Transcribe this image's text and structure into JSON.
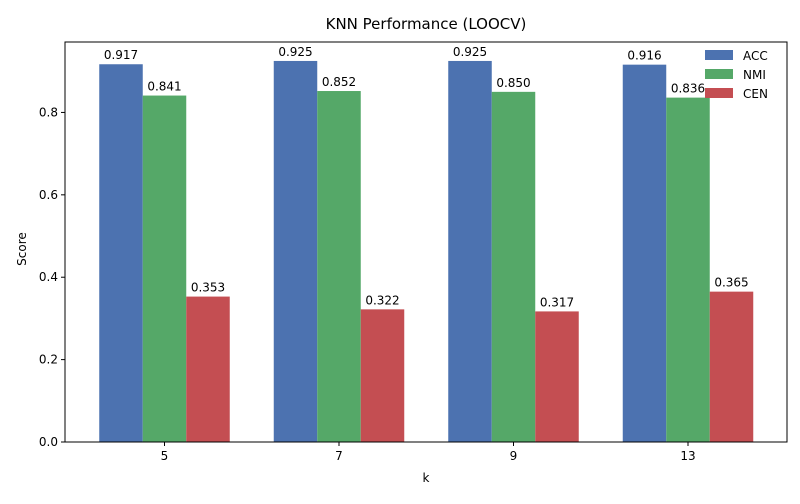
{
  "chart_data": {
    "type": "bar",
    "title": "KNN Performance (LOOCV)",
    "xlabel": "k",
    "ylabel": "Score",
    "categories": [
      "5",
      "7",
      "9",
      "13"
    ],
    "series": [
      {
        "name": "ACC",
        "values": [
          0.917,
          0.925,
          0.925,
          0.916
        ],
        "labels": [
          "0.917",
          "0.925",
          "0.925",
          "0.916"
        ],
        "color": "#4c72b0"
      },
      {
        "name": "NMI",
        "values": [
          0.841,
          0.852,
          0.85,
          0.836
        ],
        "labels": [
          "0.841",
          "0.852",
          "0.850",
          "0.836"
        ],
        "color": "#55a868"
      },
      {
        "name": "CEN",
        "values": [
          0.353,
          0.322,
          0.317,
          0.365
        ],
        "labels": [
          "0.353",
          "0.322",
          "0.317",
          "0.365"
        ],
        "color": "#c44e52"
      }
    ],
    "ylim": [
      0,
      0.971
    ],
    "yticks": [
      "0.0",
      "0.2",
      "0.4",
      "0.6",
      "0.8"
    ],
    "ytick_values": [
      0,
      0.2,
      0.4,
      0.6,
      0.8
    ],
    "legend_position": "top-right",
    "grid": false
  }
}
